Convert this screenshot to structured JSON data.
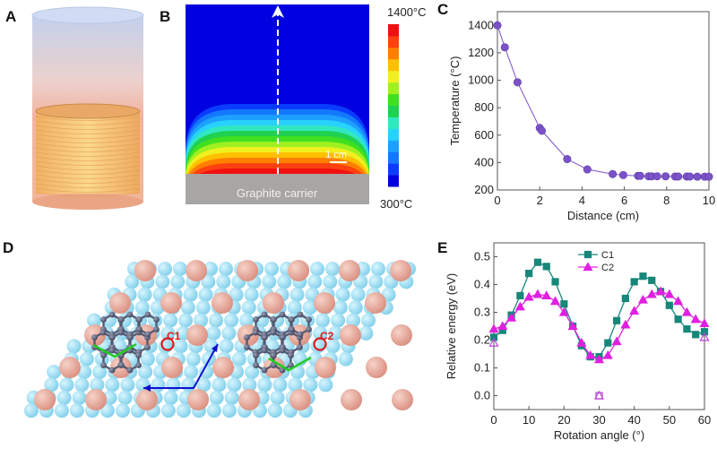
{
  "panels": {
    "A": {
      "label": "A"
    },
    "B": {
      "label": "B",
      "colorbar_max": "1400°C",
      "colorbar_min": "300°C",
      "scale_bar": "1 cm",
      "carrier_label": "Graphite carrier",
      "colormap": [
        "#0000e0",
        "#0a3cff",
        "#1478ff",
        "#1ea0ff",
        "#28d2ff",
        "#30e8c0",
        "#20d050",
        "#40e020",
        "#a0f020",
        "#f0f020",
        "#ffc000",
        "#ff8000",
        "#ff4010",
        "#f01010"
      ]
    },
    "C": {
      "label": "C"
    },
    "D": {
      "label": "D",
      "site1": "C1",
      "site2": "C2"
    },
    "E": {
      "label": "E"
    }
  },
  "chart_data": [
    {
      "panel": "C",
      "type": "line",
      "xlabel": "Distance (cm)",
      "ylabel": "Temperature (°C)",
      "xlim": [
        0,
        10
      ],
      "ylim": [
        200,
        1500
      ],
      "xticks": [
        0,
        2,
        4,
        6,
        8,
        10
      ],
      "yticks": [
        200,
        400,
        600,
        800,
        1000,
        1200,
        1400
      ],
      "grid": false,
      "color": "#7b52c8",
      "series": [
        {
          "x": [
            0,
            0.35,
            0.95,
            2.0,
            2.1,
            3.3,
            4.25,
            5.45,
            5.95,
            6.65,
            6.75,
            7.15,
            7.3,
            7.55,
            7.95,
            8.4,
            8.55,
            8.95,
            9.1,
            9.45,
            9.8,
            10
          ],
          "y": [
            1400,
            1240,
            985,
            652,
            632,
            425,
            350,
            316,
            309,
            303,
            303,
            300,
            300,
            300,
            300,
            298,
            298,
            298,
            298,
            297,
            297,
            297
          ]
        }
      ]
    },
    {
      "panel": "E",
      "type": "line",
      "xlabel": "Rotation angle (°)",
      "ylabel": "Relative energy (eV)",
      "xlim": [
        0,
        60
      ],
      "ylim": [
        -0.05,
        0.55
      ],
      "xticks": [
        0,
        10,
        20,
        30,
        40,
        50,
        60
      ],
      "yticks": [
        0.0,
        0.1,
        0.2,
        0.3,
        0.4,
        0.5
      ],
      "yticklabels": [
        "0.0",
        "0.1",
        "0.2",
        "0.3",
        "0.4",
        "0.5"
      ],
      "grid": false,
      "legend": "top-center",
      "x": [
        0,
        2.5,
        5,
        7.5,
        10,
        12.5,
        15,
        17.5,
        20,
        22.5,
        25,
        27.5,
        30,
        32.5,
        35,
        37.5,
        40,
        42.5,
        45,
        47.5,
        50,
        52.5,
        55,
        57.5,
        60
      ],
      "series": [
        {
          "name": "C1",
          "marker": "square",
          "color": "#17877a",
          "values": [
            0.21,
            0.235,
            0.29,
            0.36,
            0.44,
            0.48,
            0.465,
            0.41,
            0.33,
            0.25,
            0.18,
            0.14,
            0.14,
            0.19,
            0.27,
            0.35,
            0.41,
            0.43,
            0.415,
            0.375,
            0.325,
            0.275,
            0.24,
            0.22,
            0.23
          ]
        },
        {
          "name": "C2",
          "marker": "triangle",
          "color": "#e020e0",
          "values": [
            0.24,
            0.25,
            0.28,
            0.32,
            0.355,
            0.365,
            0.36,
            0.34,
            0.3,
            0.25,
            0.19,
            0.145,
            0.13,
            0.145,
            0.195,
            0.255,
            0.305,
            0.345,
            0.365,
            0.375,
            0.365,
            0.34,
            0.3,
            0.275,
            0.26
          ]
        }
      ],
      "open_markers": [
        {
          "marker": "triangle",
          "x": 0,
          "y": 0.19
        },
        {
          "marker": "triangle",
          "x": 60,
          "y": 0.21
        },
        {
          "marker": "square",
          "x": 30,
          "y": 0.0
        },
        {
          "marker": "triangle",
          "x": 30,
          "y": 0.0
        }
      ]
    }
  ]
}
